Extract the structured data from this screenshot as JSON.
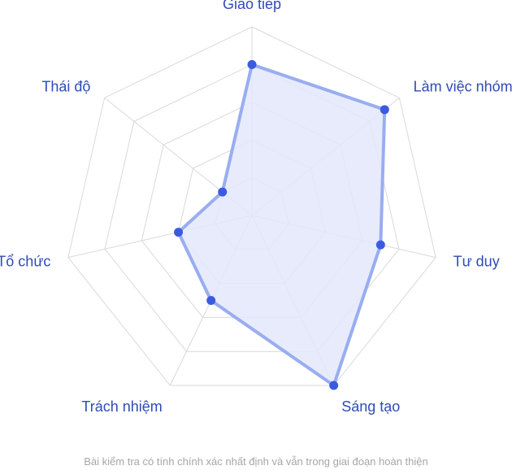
{
  "chart_data": {
    "type": "radar",
    "title": "",
    "categories": [
      "Giao tiếp",
      "Làm việc nhóm",
      "Tư duy",
      "Sáng tạo",
      "Trách nhiệm",
      "Tổ chức",
      "Thái độ"
    ],
    "series": [
      {
        "values": [
          80,
          90,
          70,
          100,
          50,
          40,
          20
        ]
      }
    ],
    "rlim": [
      0,
      100
    ],
    "grid_levels": 5,
    "grid": true,
    "legend": "none",
    "caption": "Bài kiểm tra có tính chính xác nhất định và vẫn trong giai đoạn hoàn thiện",
    "colors": {
      "line": "#99adf0",
      "fill": "#e3e8fb",
      "point": "#3a5be0",
      "grid": "#d9d9d9",
      "label": "#2f4bb8",
      "caption": "#a6a6a6"
    }
  }
}
